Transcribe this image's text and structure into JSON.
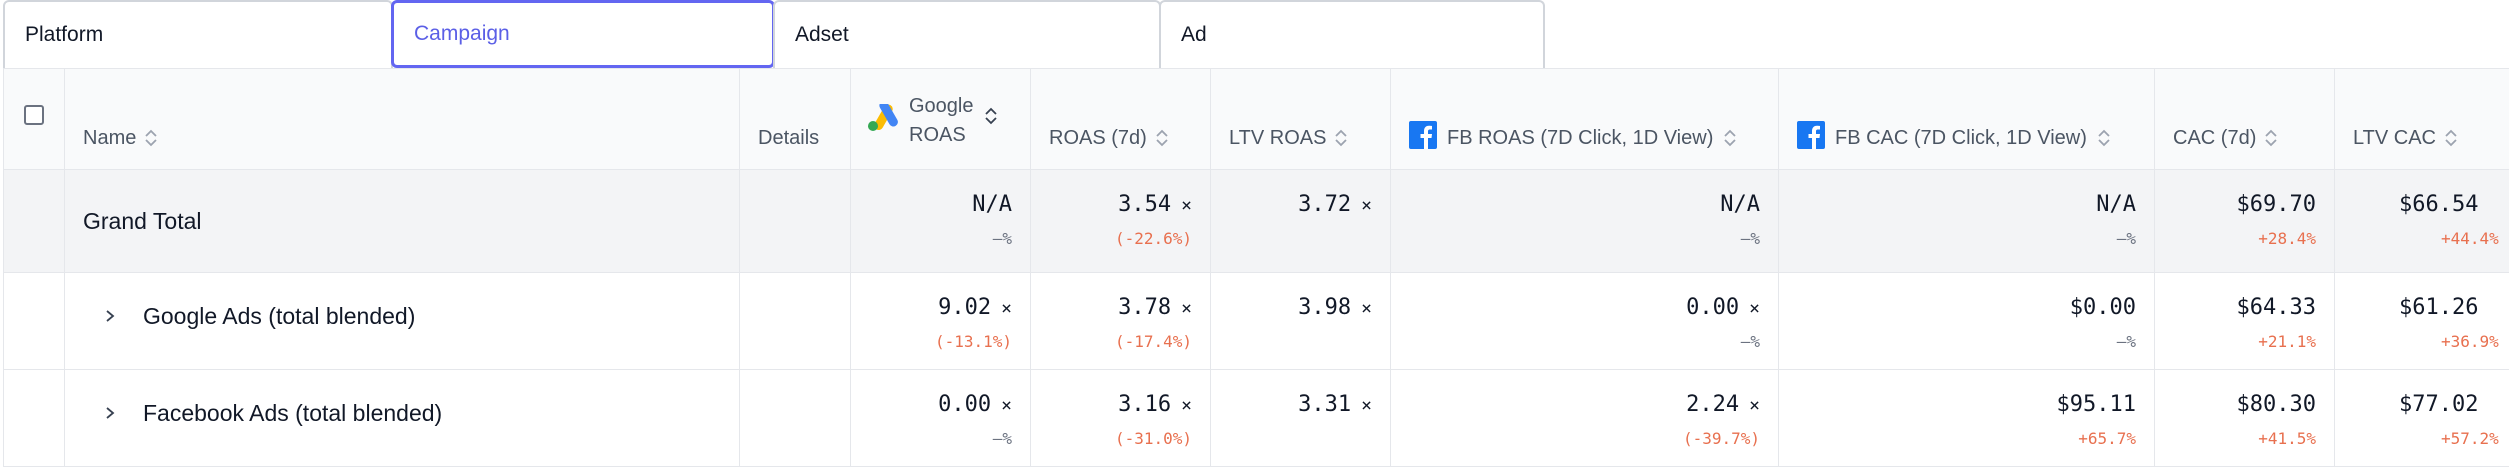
{
  "tabs": [
    {
      "label": "Platform",
      "active": false
    },
    {
      "label": "Campaign",
      "active": true
    },
    {
      "label": "Adset",
      "active": false
    },
    {
      "label": "Ad",
      "active": false
    }
  ],
  "columns": {
    "name": "Name",
    "details": "Details",
    "google_roas_line1": "Google",
    "google_roas_line2": "ROAS",
    "roas_7d": "ROAS (7d)",
    "ltv_roas": "LTV ROAS",
    "fb_roas": "FB ROAS (7D Click, 1D View)",
    "fb_cac": "FB CAC (7D Click, 1D View)",
    "cac_7d": "CAC (7d)",
    "ltv_cac": "LTV CAC"
  },
  "multiplier_symbol": "×",
  "rows": [
    {
      "name": "Grand Total",
      "google_roas": {
        "value": "N/A",
        "change": "—%"
      },
      "roas_7d": {
        "value": "3.54",
        "change": "(-22.6%)"
      },
      "ltv_roas": {
        "value": "3.72"
      },
      "fb_roas": {
        "value": "N/A",
        "change": "—%"
      },
      "fb_cac": {
        "value": "N/A",
        "change": "—%"
      },
      "cac_7d": {
        "value": "$69.70",
        "change": "+28.4%"
      },
      "ltv_cac": {
        "value": "$66.54",
        "change": "+44.4%"
      }
    },
    {
      "name": "Google Ads (total blended)",
      "google_roas": {
        "value": "9.02",
        "change": "(-13.1%)"
      },
      "roas_7d": {
        "value": "3.78",
        "change": "(-17.4%)"
      },
      "ltv_roas": {
        "value": "3.98"
      },
      "fb_roas": {
        "value": "0.00",
        "change": "—%"
      },
      "fb_cac": {
        "value": "$0.00",
        "change": "—%"
      },
      "cac_7d": {
        "value": "$64.33",
        "change": "+21.1%"
      },
      "ltv_cac": {
        "value": "$61.26",
        "change": "+36.9%"
      }
    },
    {
      "name": "Facebook Ads (total blended)",
      "google_roas": {
        "value": "0.00",
        "change": "—%"
      },
      "roas_7d": {
        "value": "3.16",
        "change": "(-31.0%)"
      },
      "ltv_roas": {
        "value": "3.31"
      },
      "fb_roas": {
        "value": "2.24",
        "change": "(-39.7%)"
      },
      "fb_cac": {
        "value": "$95.11",
        "change": "+65.7%"
      },
      "cac_7d": {
        "value": "$80.30",
        "change": "+41.5%"
      },
      "ltv_cac": {
        "value": "$77.02",
        "change": "+57.2%"
      }
    }
  ],
  "colors": {
    "accent": "#6366f1",
    "change_negative": "#e8704f",
    "google_blue": "#4285F4",
    "google_yellow": "#FBBC04",
    "google_green": "#34A853",
    "facebook_blue": "#1877F2"
  }
}
